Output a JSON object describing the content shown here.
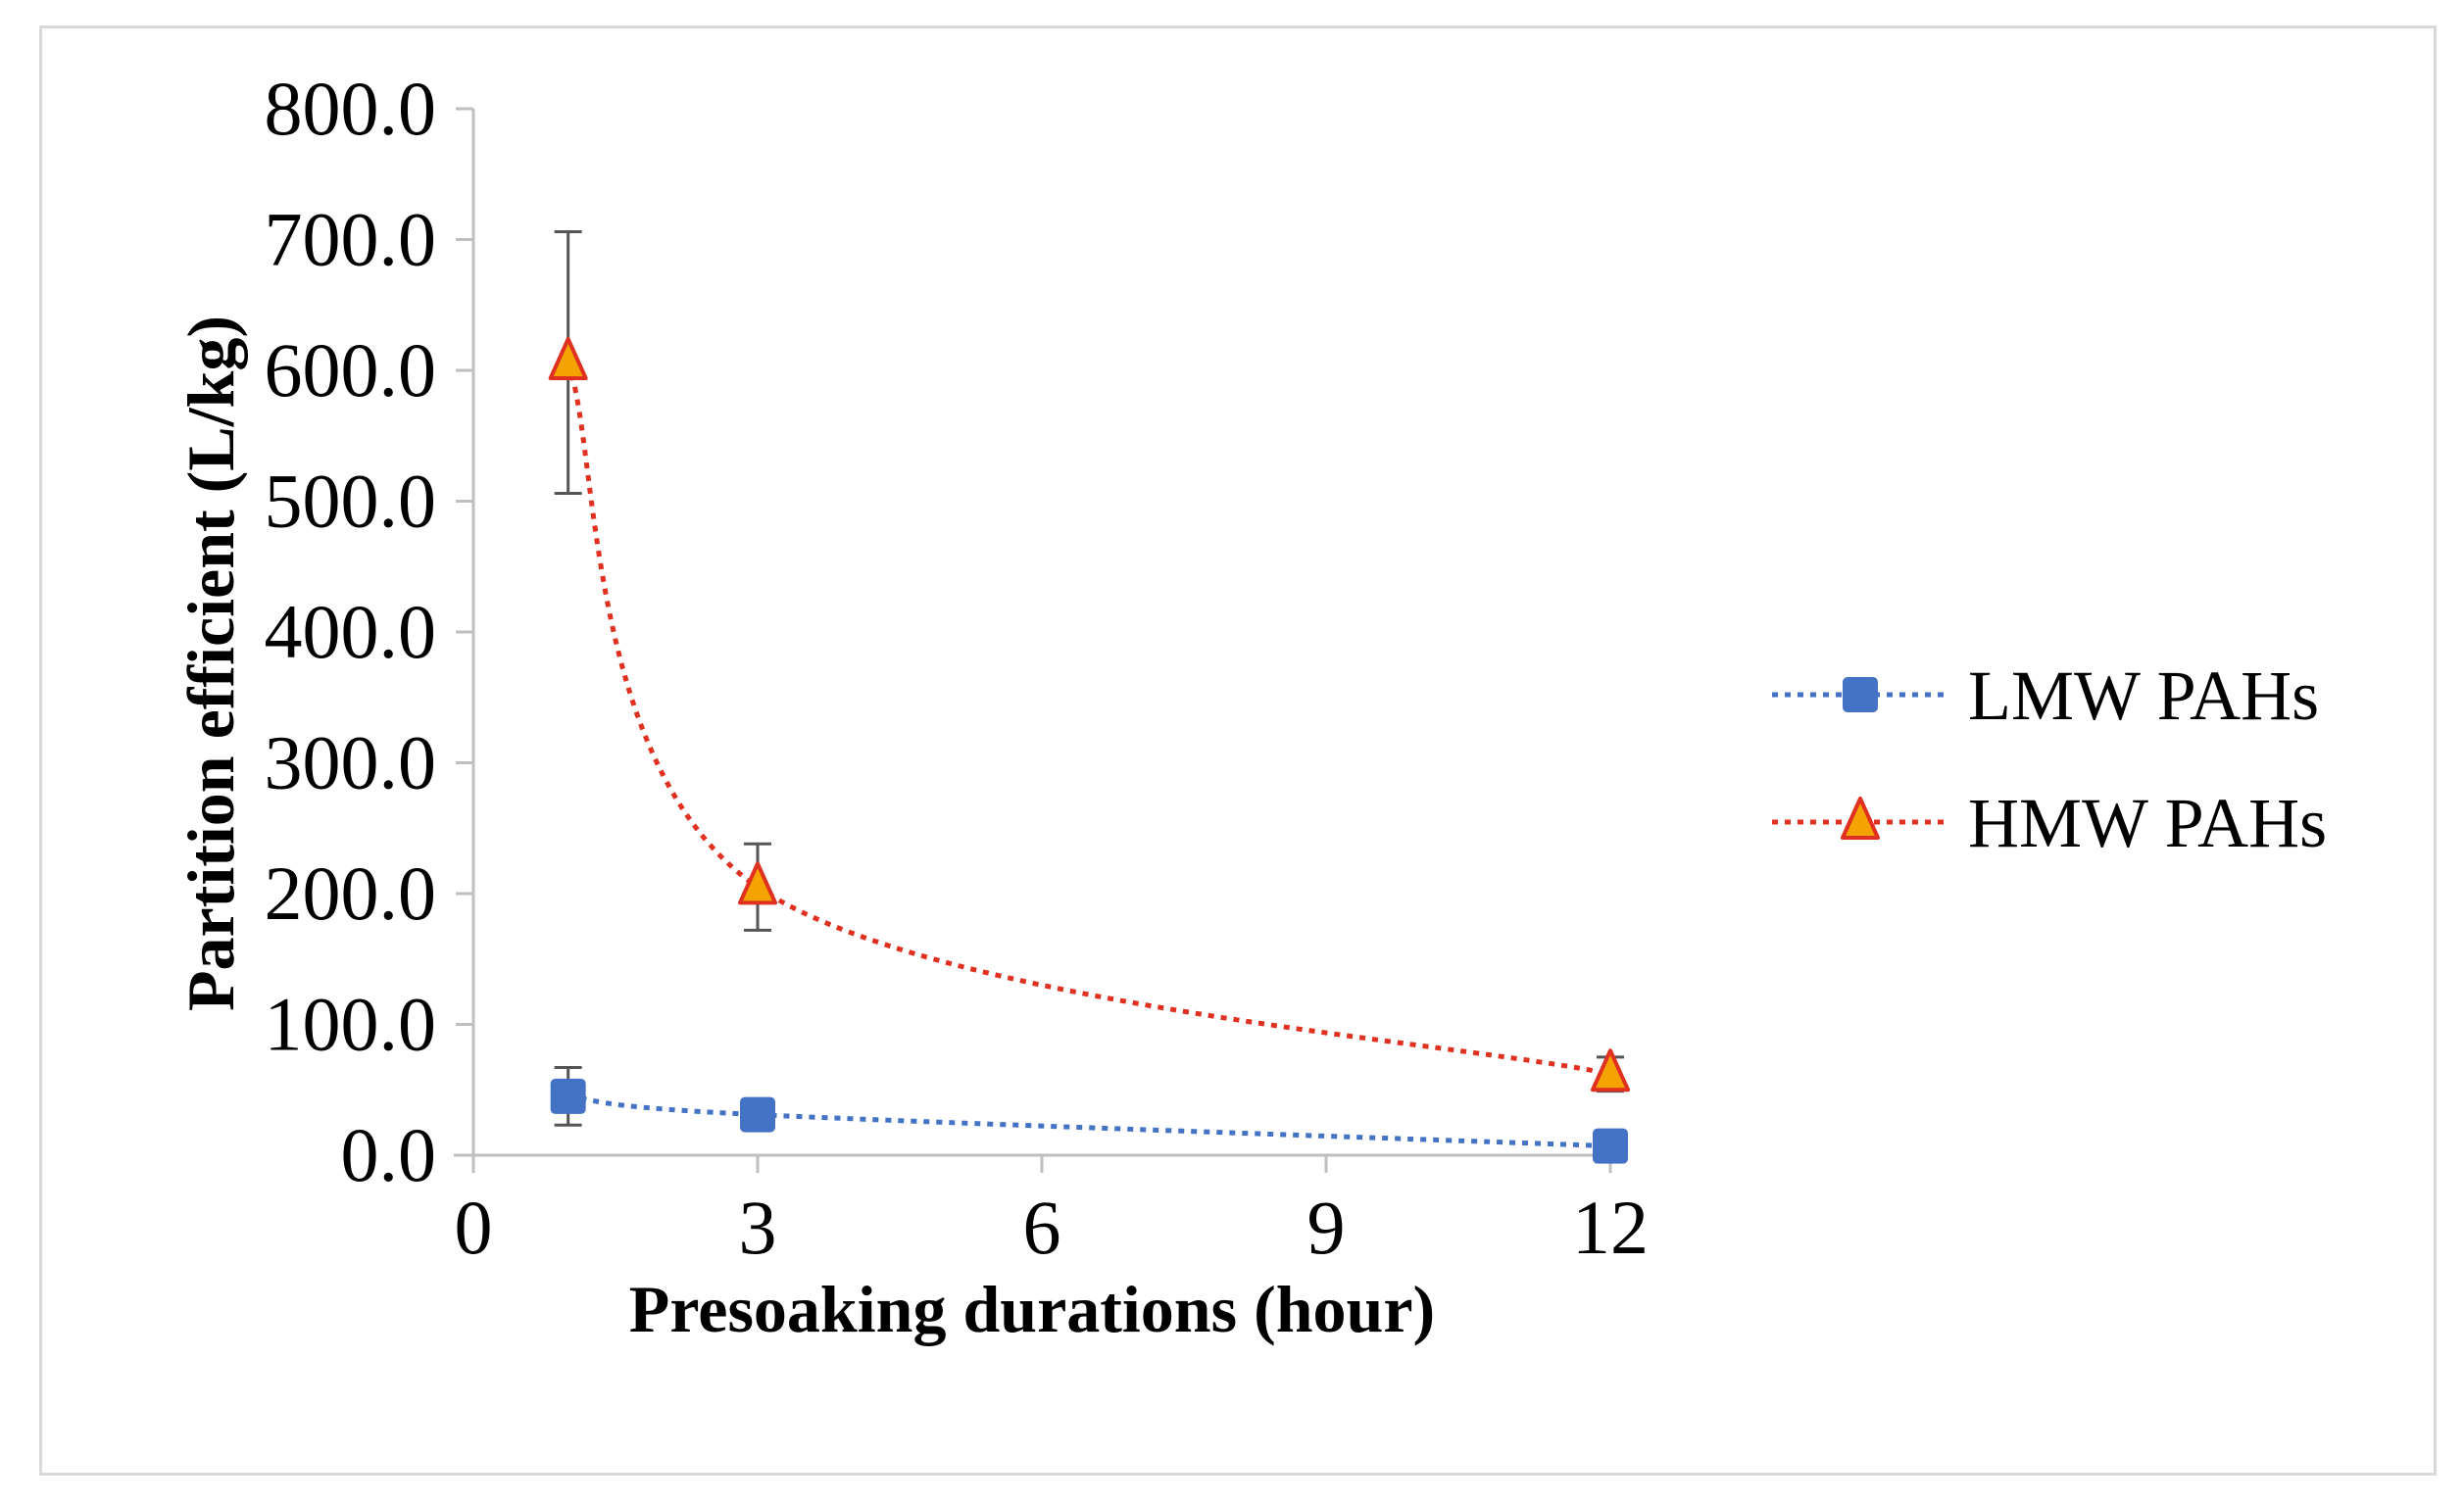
{
  "chart_data": {
    "type": "scatter",
    "title": "",
    "xlabel": "Presoaking durations (hour)",
    "ylabel": "Partition efficient (L/kg)",
    "xlim": [
      0,
      12
    ],
    "ylim": [
      0,
      800
    ],
    "xticks": [
      0,
      3,
      6,
      9,
      12
    ],
    "xtick_labels": [
      "0",
      "3",
      "6",
      "9",
      "12"
    ],
    "yticks": [
      0,
      100,
      200,
      300,
      400,
      500,
      600,
      700,
      800
    ],
    "ytick_labels": [
      "0.0",
      "100.0",
      "200.0",
      "300.0",
      "400.0",
      "500.0",
      "600.0",
      "700.0",
      "800.0"
    ],
    "grid": false,
    "legend_position": "right",
    "series": [
      {
        "name": "LMW PAHs",
        "marker": "square",
        "line_style": "dotted",
        "color": "#4472c4",
        "x": [
          1,
          3,
          12
        ],
        "y": [
          45,
          31,
          7
        ],
        "error": [
          22,
          0,
          0
        ]
      },
      {
        "name": "HMW PAHs",
        "marker": "triangle",
        "line_style": "dotted",
        "color": "#e03020",
        "fill": "#f4a300",
        "x": [
          1,
          3,
          12
        ],
        "y": [
          606,
          205,
          62
        ],
        "error": [
          100,
          33,
          13
        ]
      }
    ]
  }
}
